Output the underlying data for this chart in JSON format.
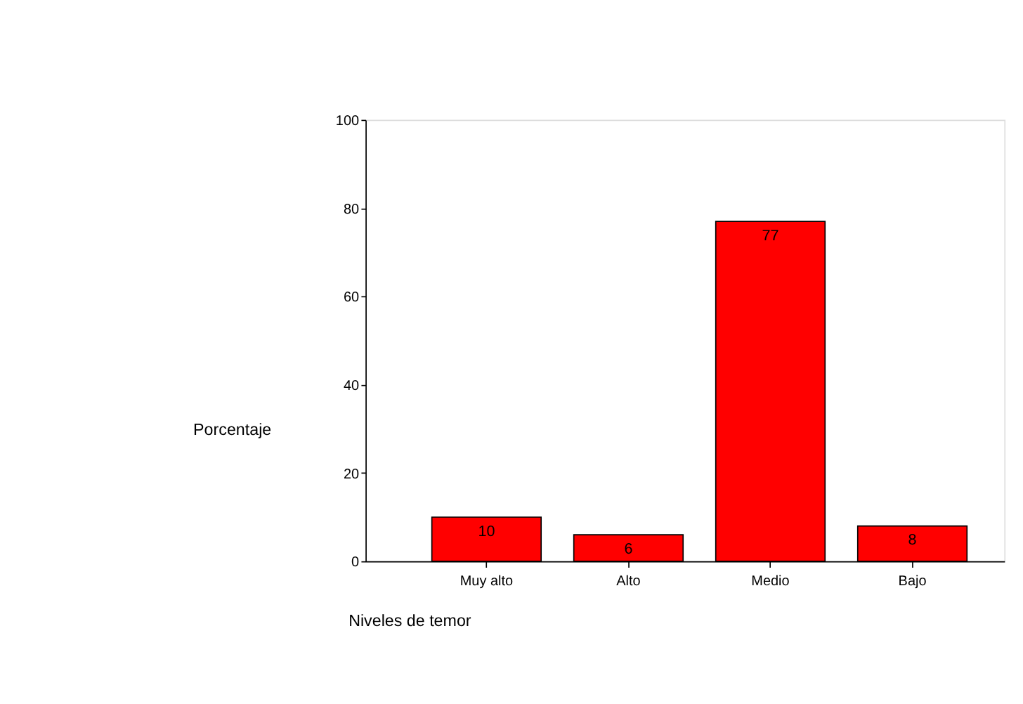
{
  "chart_data": {
    "type": "bar",
    "xlabel": "Niveles de temor",
    "ylabel": "Porcentaje",
    "categories": [
      "Muy alto",
      "Alto",
      "Medio",
      "Bajo"
    ],
    "values": [
      10,
      6,
      77,
      8
    ],
    "color": "#ff0000",
    "ylim": [
      0,
      100
    ],
    "yticks": [
      0,
      20,
      40,
      60,
      80,
      100
    ],
    "grid": false,
    "data_labels": true
  }
}
